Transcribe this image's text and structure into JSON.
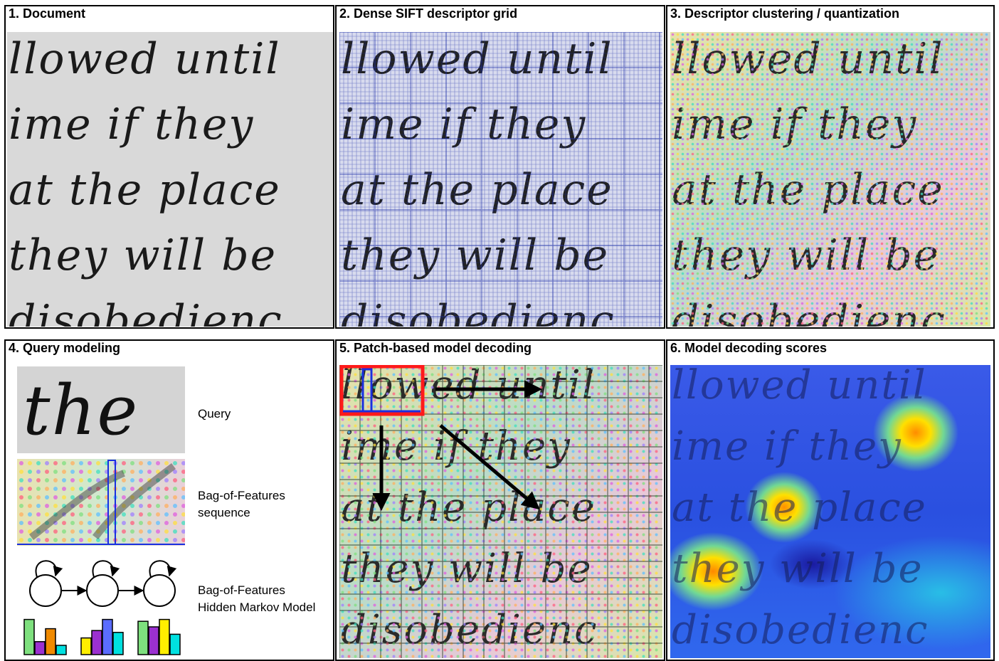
{
  "panels": [
    {
      "id": "p1",
      "title": "1. Document"
    },
    {
      "id": "p2",
      "title": "2. Dense SIFT descriptor grid"
    },
    {
      "id": "p3",
      "title": "3. Descriptor clustering / quantization"
    },
    {
      "id": "p4",
      "title": "4. Query modeling"
    },
    {
      "id": "p5",
      "title": "5. Patch-based model decoding"
    },
    {
      "id": "p6",
      "title": "6. Model decoding scores"
    }
  ],
  "document_lines": [
    "llowed until",
    "ime if they",
    "at the place",
    "they will be",
    "disobedienc"
  ],
  "query": {
    "word": "the",
    "label": "Query",
    "bof_label_1": "Bag-of-Features",
    "bof_label_2": "sequence",
    "hmm_label_1": "Bag-of-Features",
    "hmm_label_2": "Hidden Markov Model"
  },
  "colors": {
    "grid_blue": "#1e2fa8",
    "patch_red": "#ff1a1a",
    "frame_blue": "#1a2fe0",
    "arrow": "#000000"
  },
  "hmm_histograms": [
    [
      {
        "v": 0.95,
        "c": "#7ee07e"
      },
      {
        "v": 0.35,
        "c": "#9b30d0"
      },
      {
        "v": 0.7,
        "c": "#f08a00"
      },
      {
        "v": 0.25,
        "c": "#00e0e0"
      }
    ],
    [
      {
        "v": 0.45,
        "c": "#ffee00"
      },
      {
        "v": 0.65,
        "c": "#9b30d0"
      },
      {
        "v": 0.95,
        "c": "#5a6cff"
      },
      {
        "v": 0.6,
        "c": "#00e0e0"
      }
    ],
    [
      {
        "v": 0.9,
        "c": "#7ee07e"
      },
      {
        "v": 0.75,
        "c": "#9b30d0"
      },
      {
        "v": 0.95,
        "c": "#ffee00"
      },
      {
        "v": 0.55,
        "c": "#00e0e0"
      }
    ]
  ]
}
